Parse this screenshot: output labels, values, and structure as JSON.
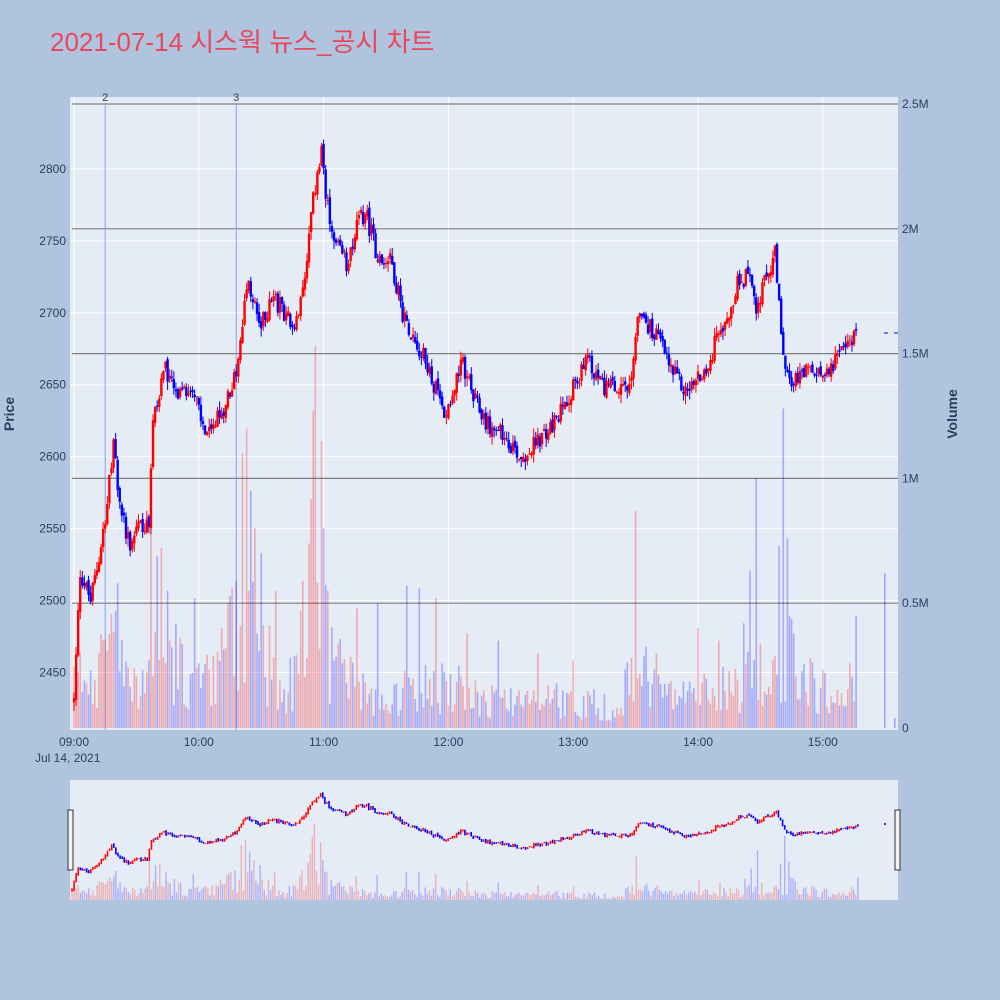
{
  "title": "2021-07-14 시스웍 뉴스_공시 차트",
  "colors": {
    "up": "#ff0000",
    "down": "#0000ff",
    "title": "#e8475f",
    "background": "#b0c4de",
    "plot_bg": "#e5ecf6",
    "hline": "#7f7f7f"
  },
  "chart_data": {
    "type": "candlestick",
    "title": "2021-07-14 시스웍 뉴스_공시 차트",
    "xlabel": "",
    "ylabel": "Price",
    "y2label": "Volume",
    "x_ticks": [
      "09:00",
      "10:00",
      "11:00",
      "12:00",
      "13:00",
      "14:00",
      "15:00"
    ],
    "x_date_label": "Jul 14, 2021",
    "x_range_minutes": [
      0,
      396
    ],
    "ylim": [
      2410,
      2850
    ],
    "y_ticks": [
      2450,
      2500,
      2550,
      2600,
      2650,
      2700,
      2750,
      2800
    ],
    "y2lim": [
      0,
      2500000
    ],
    "y2_ticks": [
      "0",
      "0.5M",
      "1M",
      "1.5M",
      "2M",
      "2.5M"
    ],
    "y2_tick_values": [
      0,
      500000,
      1000000,
      1500000,
      2000000,
      2500000
    ],
    "event_markers": [
      {
        "label": "2",
        "minute": 15
      },
      {
        "label": "3",
        "minute": 78
      }
    ],
    "price_keypoints": [
      [
        0,
        2430
      ],
      [
        3,
        2520
      ],
      [
        8,
        2500
      ],
      [
        12,
        2530
      ],
      [
        16,
        2570
      ],
      [
        19,
        2605
      ],
      [
        23,
        2560
      ],
      [
        27,
        2540
      ],
      [
        31,
        2555
      ],
      [
        36,
        2550
      ],
      [
        38,
        2625
      ],
      [
        44,
        2660
      ],
      [
        50,
        2640
      ],
      [
        57,
        2650
      ],
      [
        62,
        2620
      ],
      [
        66,
        2615
      ],
      [
        72,
        2635
      ],
      [
        78,
        2660
      ],
      [
        83,
        2720
      ],
      [
        90,
        2690
      ],
      [
        95,
        2710
      ],
      [
        102,
        2700
      ],
      [
        106,
        2685
      ],
      [
        111,
        2720
      ],
      [
        115,
        2780
      ],
      [
        119,
        2810
      ],
      [
        124,
        2750
      ],
      [
        131,
        2735
      ],
      [
        136,
        2760
      ],
      [
        140,
        2770
      ],
      [
        147,
        2735
      ],
      [
        152,
        2740
      ],
      [
        158,
        2700
      ],
      [
        165,
        2680
      ],
      [
        172,
        2655
      ],
      [
        178,
        2630
      ],
      [
        187,
        2665
      ],
      [
        192,
        2640
      ],
      [
        200,
        2620
      ],
      [
        207,
        2615
      ],
      [
        215,
        2600
      ],
      [
        223,
        2610
      ],
      [
        232,
        2625
      ],
      [
        240,
        2650
      ],
      [
        247,
        2665
      ],
      [
        254,
        2650
      ],
      [
        262,
        2645
      ],
      [
        268,
        2648
      ],
      [
        271,
        2700
      ],
      [
        277,
        2690
      ],
      [
        282,
        2680
      ],
      [
        287,
        2660
      ],
      [
        294,
        2645
      ],
      [
        301,
        2655
      ],
      [
        306,
        2665
      ],
      [
        310,
        2690
      ],
      [
        315,
        2700
      ],
      [
        319,
        2720
      ],
      [
        324,
        2725
      ],
      [
        328,
        2700
      ],
      [
        332,
        2720
      ],
      [
        337,
        2740
      ],
      [
        341,
        2665
      ],
      [
        346,
        2650
      ],
      [
        352,
        2660
      ],
      [
        358,
        2655
      ],
      [
        364,
        2665
      ],
      [
        370,
        2672
      ],
      [
        376,
        2690
      ]
    ],
    "volume_profile": [
      [
        0,
        300000
      ],
      [
        10,
        350000
      ],
      [
        18,
        500000
      ],
      [
        28,
        250000
      ],
      [
        38,
        650000
      ],
      [
        45,
        450000
      ],
      [
        60,
        250000
      ],
      [
        70,
        300000
      ],
      [
        78,
        700000
      ],
      [
        85,
        700000
      ],
      [
        95,
        350000
      ],
      [
        105,
        250000
      ],
      [
        115,
        900000
      ],
      [
        125,
        350000
      ],
      [
        140,
        250000
      ],
      [
        150,
        200000
      ],
      [
        165,
        250000
      ],
      [
        180,
        250000
      ],
      [
        200,
        180000
      ],
      [
        220,
        150000
      ],
      [
        240,
        180000
      ],
      [
        260,
        120000
      ],
      [
        271,
        400000
      ],
      [
        285,
        200000
      ],
      [
        300,
        200000
      ],
      [
        320,
        280000
      ],
      [
        340,
        500000
      ],
      [
        355,
        250000
      ],
      [
        370,
        200000
      ],
      [
        376,
        350000
      ]
    ],
    "volume_spikes": [
      [
        12,
        300000
      ],
      [
        21,
        580000
      ],
      [
        37,
        1000000
      ],
      [
        40,
        690000
      ],
      [
        42,
        720000
      ],
      [
        45,
        550000
      ],
      [
        58,
        520000
      ],
      [
        71,
        400000
      ],
      [
        74,
        500000
      ],
      [
        76,
        560000
      ],
      [
        78,
        590000
      ],
      [
        81,
        1100000
      ],
      [
        83,
        1200000
      ],
      [
        85,
        950000
      ],
      [
        87,
        800000
      ],
      [
        90,
        700000
      ],
      [
        97,
        550000
      ],
      [
        110,
        590000
      ],
      [
        113,
        740000
      ],
      [
        115,
        1270000
      ],
      [
        116,
        1530000
      ],
      [
        119,
        1150000
      ],
      [
        120,
        800000
      ],
      [
        122,
        550000
      ],
      [
        136,
        480000
      ],
      [
        146,
        500000
      ],
      [
        160,
        570000
      ],
      [
        166,
        560000
      ],
      [
        174,
        520000
      ],
      [
        189,
        380000
      ],
      [
        204,
        350000
      ],
      [
        223,
        300000
      ],
      [
        240,
        270000
      ],
      [
        270,
        870000
      ],
      [
        280,
        300000
      ],
      [
        300,
        400000
      ],
      [
        310,
        350000
      ],
      [
        322,
        420000
      ],
      [
        325,
        630000
      ],
      [
        328,
        1000000
      ],
      [
        339,
        730000
      ],
      [
        341,
        1280000
      ],
      [
        343,
        760000
      ],
      [
        376,
        450000
      ]
    ]
  },
  "axis": {
    "y_title": "Price",
    "y2_title": "Volume",
    "date_label": "Jul 14, 2021"
  }
}
